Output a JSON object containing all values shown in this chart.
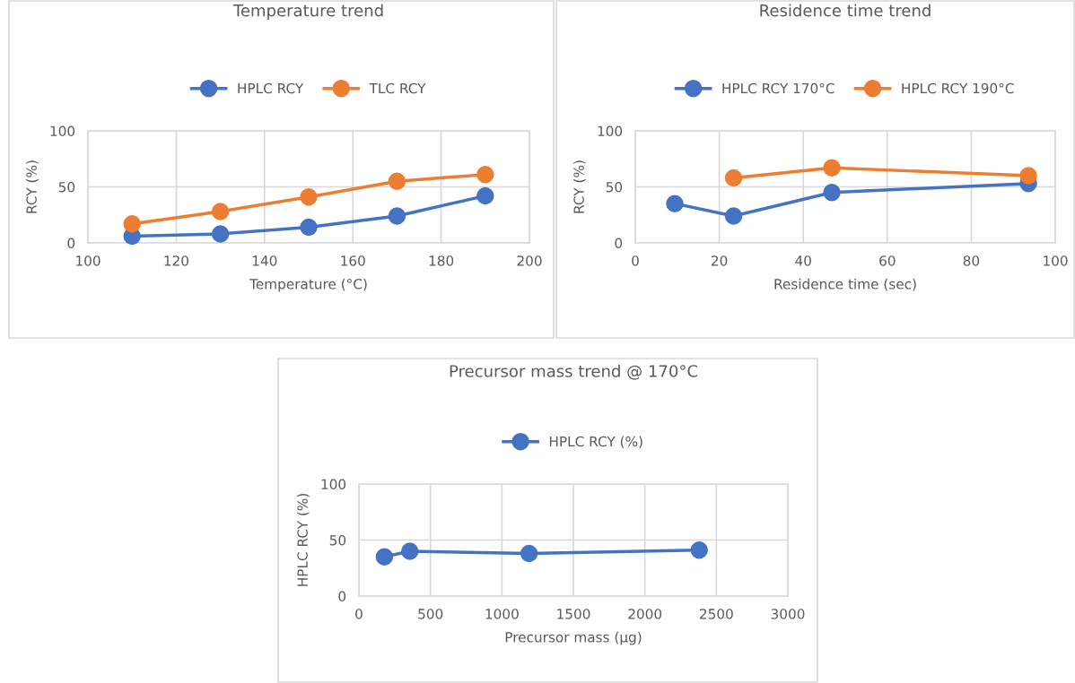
{
  "chart_data": [
    {
      "type": "line",
      "title": "Temperature trend",
      "xlabel": "Temperature (°C)",
      "ylabel": "RCY (%)",
      "xlim": [
        100,
        200
      ],
      "xticks": [
        100,
        120,
        140,
        160,
        180,
        200
      ],
      "ylim": [
        0,
        100
      ],
      "yticks": [
        0,
        50,
        100
      ],
      "grid": true,
      "legend": "top",
      "marker": "circle",
      "line_style": "solid",
      "x": [
        110,
        130,
        150,
        170,
        190
      ],
      "series": [
        {
          "name": "HPLC RCY",
          "color": "#4472c4",
          "values": [
            6,
            8,
            14,
            24,
            42
          ]
        },
        {
          "name": "TLC RCY",
          "color": "#ed7d31",
          "values": [
            17,
            28,
            41,
            55,
            61
          ]
        }
      ]
    },
    {
      "type": "line",
      "title": "Residence time trend",
      "xlabel": "Residence time (sec)",
      "ylabel": "RCY (%)",
      "xlim": [
        0,
        100
      ],
      "xticks": [
        0,
        20,
        40,
        60,
        80,
        100
      ],
      "ylim": [
        0,
        100
      ],
      "yticks": [
        0,
        50,
        100
      ],
      "grid": true,
      "legend": "top",
      "marker": "circle",
      "line_style": "solid",
      "series": [
        {
          "name": "HPLC RCY 170°C",
          "color": "#4472c4",
          "x": [
            9.4,
            23.4,
            46.8,
            93.6
          ],
          "values": [
            35,
            24,
            45,
            53
          ]
        },
        {
          "name": "HPLC RCY 190°C",
          "color": "#ed7d31",
          "x": [
            23.4,
            46.8,
            93.6
          ],
          "values": [
            58,
            67,
            60
          ]
        }
      ]
    },
    {
      "type": "line",
      "title": "Precursor mass trend @ 170°C",
      "xlabel": "Precursor mass (µg)",
      "ylabel": "HPLC RCY (%)",
      "xlim": [
        0,
        3000
      ],
      "xticks": [
        0,
        500,
        1000,
        1500,
        2000,
        2500,
        3000
      ],
      "ylim": [
        0,
        100
      ],
      "yticks": [
        0,
        50,
        100
      ],
      "grid": true,
      "legend": "top",
      "marker": "circle",
      "line_style": "solid",
      "series": [
        {
          "name": "HPLC RCY (%)",
          "color": "#4472c4",
          "x": [
            178,
            356,
            1190,
            2380
          ],
          "values": [
            35,
            40,
            38,
            41
          ]
        }
      ]
    }
  ]
}
